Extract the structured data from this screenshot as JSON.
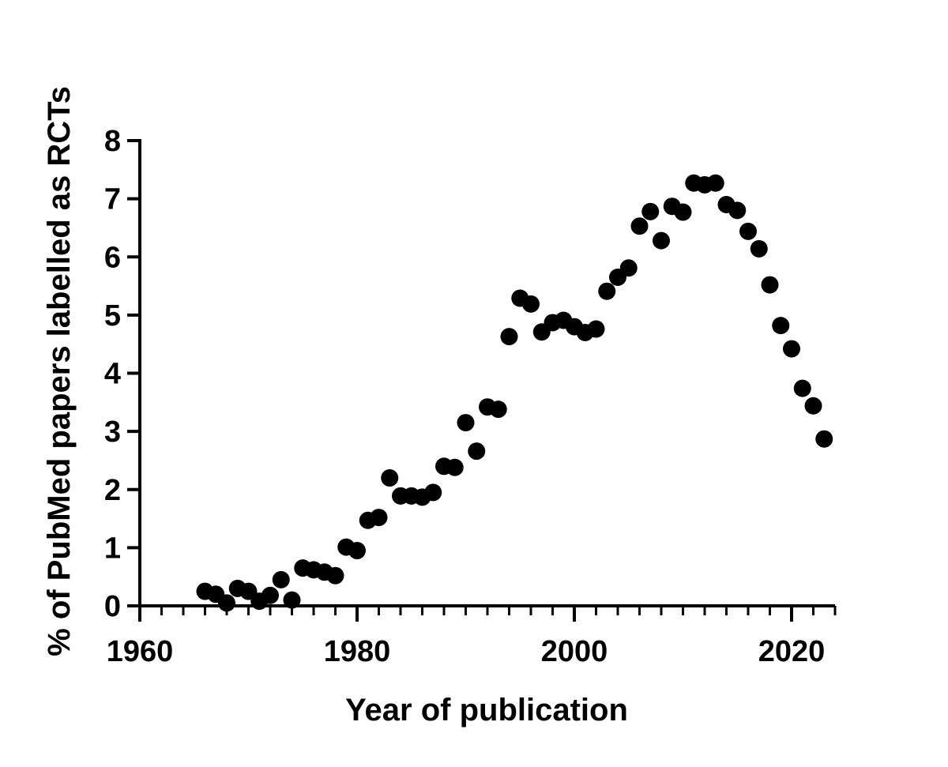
{
  "chart_data": {
    "type": "scatter",
    "xlabel": "Year of publication",
    "ylabel": "% of PubMed papers labelled as RCTs",
    "xlim": [
      1960,
      2024
    ],
    "ylim": [
      0,
      8
    ],
    "x_ticks": [
      1960,
      1980,
      2000,
      2020
    ],
    "y_ticks": [
      0,
      1,
      2,
      3,
      4,
      5,
      6,
      7,
      8
    ],
    "x_tick_labels": [
      "1960",
      "1980",
      "2000",
      "2020"
    ],
    "y_tick_labels": [
      "0",
      "1",
      "2",
      "3",
      "4",
      "5",
      "6",
      "7",
      "8"
    ],
    "x_minor_step": 2,
    "grid": false,
    "marker_color": "#000000",
    "series": [
      {
        "points": [
          [
            1966,
            0.25
          ],
          [
            1967,
            0.2
          ],
          [
            1968,
            0.05
          ],
          [
            1969,
            0.3
          ],
          [
            1970,
            0.25
          ],
          [
            1971,
            0.08
          ],
          [
            1972,
            0.18
          ],
          [
            1973,
            0.45
          ],
          [
            1974,
            0.1
          ],
          [
            1975,
            0.65
          ],
          [
            1976,
            0.62
          ],
          [
            1977,
            0.58
          ],
          [
            1978,
            0.52
          ],
          [
            1979,
            1.01
          ],
          [
            1980,
            0.95
          ],
          [
            1981,
            1.47
          ],
          [
            1982,
            1.52
          ],
          [
            1983,
            2.2
          ],
          [
            1984,
            1.89
          ],
          [
            1985,
            1.89
          ],
          [
            1986,
            1.87
          ],
          [
            1987,
            1.95
          ],
          [
            1988,
            2.4
          ],
          [
            1989,
            2.38
          ],
          [
            1990,
            3.15
          ],
          [
            1991,
            2.66
          ],
          [
            1992,
            3.42
          ],
          [
            1993,
            3.38
          ],
          [
            1994,
            4.63
          ],
          [
            1995,
            5.29
          ],
          [
            1996,
            5.19
          ],
          [
            1997,
            4.71
          ],
          [
            1998,
            4.87
          ],
          [
            1999,
            4.91
          ],
          [
            2000,
            4.8
          ],
          [
            2001,
            4.7
          ],
          [
            2002,
            4.76
          ],
          [
            2003,
            5.41
          ],
          [
            2004,
            5.65
          ],
          [
            2005,
            5.81
          ],
          [
            2006,
            6.53
          ],
          [
            2007,
            6.78
          ],
          [
            2008,
            6.28
          ],
          [
            2009,
            6.87
          ],
          [
            2010,
            6.77
          ],
          [
            2011,
            7.27
          ],
          [
            2012,
            7.24
          ],
          [
            2013,
            7.27
          ],
          [
            2014,
            6.9
          ],
          [
            2015,
            6.8
          ],
          [
            2016,
            6.44
          ],
          [
            2017,
            6.14
          ],
          [
            2018,
            5.52
          ],
          [
            2019,
            4.82
          ],
          [
            2020,
            4.42
          ],
          [
            2021,
            3.74
          ],
          [
            2022,
            3.44
          ],
          [
            2023,
            2.87
          ]
        ]
      }
    ]
  }
}
